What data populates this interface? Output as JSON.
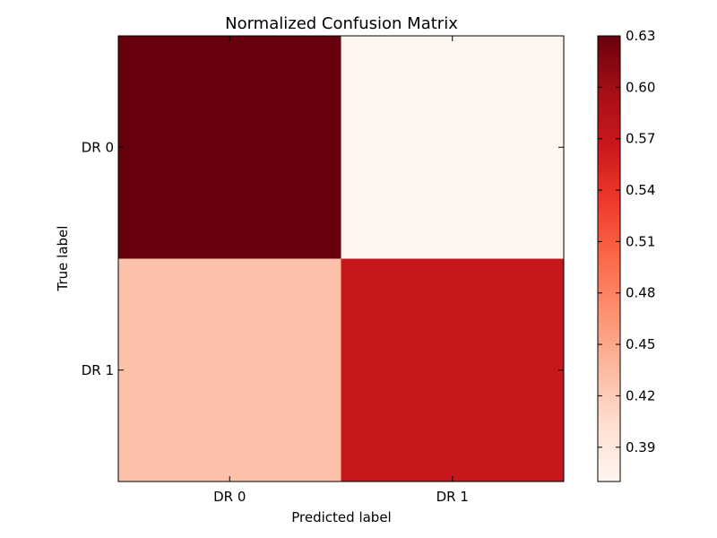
{
  "chart_data": {
    "type": "heatmap",
    "title": "Normalized Confusion Matrix",
    "xlabel": "Predicted label",
    "ylabel": "True label",
    "x_categories": [
      "DR 0",
      "DR 1"
    ],
    "y_categories": [
      "DR 0",
      "DR 1"
    ],
    "values": [
      [
        0.63,
        0.37
      ],
      [
        0.43,
        0.57
      ]
    ],
    "colorbar": {
      "min": 0.37,
      "max": 0.63,
      "ticks": [
        "0.39",
        "0.42",
        "0.45",
        "0.48",
        "0.51",
        "0.54",
        "0.57",
        "0.60",
        "0.63"
      ],
      "colormap": "Reds"
    },
    "grid": false
  }
}
